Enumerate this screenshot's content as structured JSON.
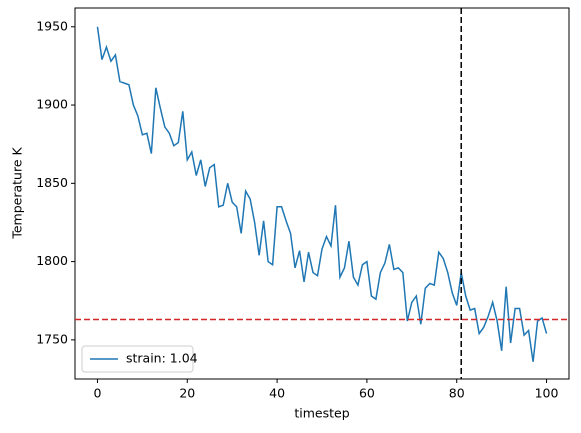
{
  "chart_data": {
    "type": "line",
    "xlabel": "timestep",
    "ylabel": "Temperature K",
    "x": [
      0,
      1,
      2,
      3,
      4,
      5,
      6,
      7,
      8,
      9,
      10,
      11,
      12,
      13,
      14,
      15,
      16,
      17,
      18,
      19,
      20,
      21,
      22,
      23,
      24,
      25,
      26,
      27,
      28,
      29,
      30,
      31,
      32,
      33,
      34,
      35,
      36,
      37,
      38,
      39,
      40,
      41,
      42,
      43,
      44,
      45,
      46,
      47,
      48,
      49,
      50,
      51,
      52,
      53,
      54,
      55,
      56,
      57,
      58,
      59,
      60,
      61,
      62,
      63,
      64,
      65,
      66,
      67,
      68,
      69,
      70,
      71,
      72,
      73,
      74,
      75,
      76,
      77,
      78,
      79,
      80,
      81,
      82,
      83,
      84,
      85,
      86,
      87,
      88,
      89,
      90,
      91,
      92,
      93,
      94,
      95,
      96,
      97,
      98,
      99,
      100
    ],
    "series": [
      {
        "name": "strain: 1.04",
        "color": "#1f77b4",
        "values": [
          1950,
          1929,
          1937,
          1928,
          1932,
          1915,
          1914,
          1913,
          1900,
          1893,
          1881,
          1882,
          1869,
          1911,
          1898,
          1886,
          1882,
          1874,
          1876,
          1896,
          1865,
          1870,
          1855,
          1865,
          1848,
          1860,
          1862,
          1835,
          1836,
          1850,
          1838,
          1835,
          1818,
          1845,
          1840,
          1825,
          1804,
          1826,
          1800,
          1798,
          1835,
          1835,
          1826,
          1818,
          1796,
          1807,
          1787,
          1806,
          1793,
          1791,
          1808,
          1816,
          1810,
          1836,
          1790,
          1796,
          1813,
          1790,
          1785,
          1798,
          1800,
          1778,
          1776,
          1793,
          1799,
          1811,
          1795,
          1796,
          1793,
          1762,
          1774,
          1778,
          1760,
          1783,
          1786,
          1785,
          1806,
          1802,
          1793,
          1780,
          1772,
          1793,
          1778,
          1769,
          1770,
          1754,
          1758,
          1765,
          1774,
          1762,
          1743,
          1784,
          1748,
          1770,
          1770,
          1753,
          1756,
          1736,
          1762,
          1764,
          1754
        ]
      }
    ],
    "xlim": [
      -5,
      105
    ],
    "ylim": [
      1725,
      1962
    ],
    "xticks": [
      0,
      20,
      40,
      60,
      80,
      100
    ],
    "yticks": [
      1750,
      1800,
      1850,
      1900,
      1950
    ],
    "vline": {
      "value": 81,
      "color": "#000000"
    },
    "hline": {
      "value": 1763,
      "color": "#d62728"
    },
    "legend": "lower left"
  }
}
